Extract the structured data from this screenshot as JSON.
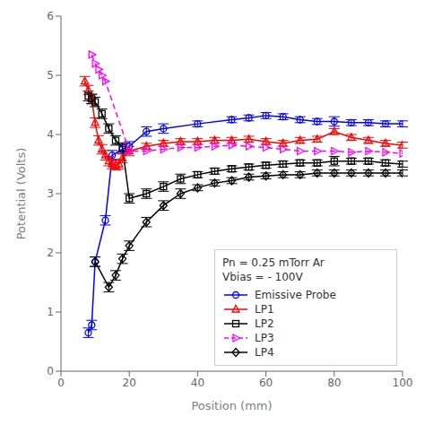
{
  "chart_data": {
    "type": "line",
    "xlabel": "Position (mm)",
    "ylabel": "Potential (Volts)",
    "xlim": [
      0,
      100
    ],
    "ylim": [
      0,
      6
    ],
    "xticks": [
      0,
      20,
      40,
      60,
      80,
      100
    ],
    "yticks": [
      0,
      1,
      2,
      3,
      4,
      5,
      6
    ],
    "grid": false,
    "legend": "lower right",
    "annotations": [
      "Pn = 0.25 mTorr Ar",
      "Vbias = - 100V"
    ],
    "series": [
      {
        "name": "Emissive Probe",
        "color": "#0000ff",
        "marker": "circle",
        "line_style": "solid",
        "x": [
          8,
          9,
          10,
          13,
          15,
          18,
          20,
          25,
          30,
          40,
          50,
          55,
          60,
          65,
          70,
          75,
          80,
          85,
          90,
          95,
          100
        ],
        "values": [
          0.65,
          0.78,
          1.85,
          2.55,
          3.65,
          3.75,
          3.8,
          4.05,
          4.1,
          4.18,
          4.25,
          4.28,
          4.32,
          4.3,
          4.25,
          4.22,
          4.22,
          4.2,
          4.2,
          4.18,
          4.18
        ],
        "errors": [
          0.08,
          0.08,
          0.08,
          0.08,
          0.08,
          0.08,
          0.08,
          0.08,
          0.08,
          0.05,
          0.05,
          0.05,
          0.05,
          0.05,
          0.05,
          0.05,
          0.08,
          0.05,
          0.05,
          0.05,
          0.05
        ]
      },
      {
        "name": "LP1",
        "color": "#ff0000",
        "marker": "triangle-up",
        "line_style": "solid",
        "x": [
          7,
          8,
          9,
          10,
          11,
          12,
          13,
          14,
          15,
          16,
          17,
          18,
          20,
          25,
          30,
          35,
          40,
          45,
          50,
          55,
          60,
          65,
          70,
          75,
          80,
          85,
          90,
          95,
          100
        ],
        "values": [
          4.9,
          4.75,
          4.6,
          4.2,
          3.9,
          3.75,
          3.65,
          3.55,
          3.5,
          3.48,
          3.5,
          3.6,
          3.72,
          3.8,
          3.85,
          3.88,
          3.88,
          3.9,
          3.9,
          3.92,
          3.88,
          3.85,
          3.9,
          3.92,
          4.05,
          3.95,
          3.9,
          3.85,
          3.82
        ],
        "errors": [
          0.08,
          0.08,
          0.08,
          0.08,
          0.08,
          0.08,
          0.08,
          0.08,
          0.08,
          0.08,
          0.08,
          0.08,
          0.08,
          0.05,
          0.05,
          0.05,
          0.05,
          0.05,
          0.05,
          0.05,
          0.05,
          0.05,
          0.05,
          0.05,
          0.05,
          0.05,
          0.05,
          0.05,
          0.05
        ]
      },
      {
        "name": "LP2",
        "color": "#000000",
        "marker": "square",
        "line_style": "solid",
        "x": [
          8,
          9,
          10,
          12,
          14,
          16,
          18,
          20,
          25,
          30,
          35,
          40,
          45,
          50,
          55,
          60,
          65,
          70,
          75,
          80,
          85,
          90,
          95,
          100
        ],
        "values": [
          4.65,
          4.6,
          4.55,
          4.35,
          4.1,
          3.9,
          3.78,
          2.92,
          3.0,
          3.12,
          3.25,
          3.32,
          3.38,
          3.42,
          3.45,
          3.48,
          3.5,
          3.52,
          3.52,
          3.55,
          3.55,
          3.55,
          3.52,
          3.5
        ],
        "errors": [
          0.08,
          0.08,
          0.08,
          0.08,
          0.08,
          0.08,
          0.08,
          0.08,
          0.08,
          0.08,
          0.08,
          0.05,
          0.05,
          0.05,
          0.05,
          0.05,
          0.05,
          0.05,
          0.05,
          0.08,
          0.05,
          0.05,
          0.05,
          0.05
        ]
      },
      {
        "name": "LP3",
        "color": "#ff00ff",
        "marker": "triangle-right",
        "line_style": "dashed",
        "x": [
          9,
          10,
          11,
          12,
          13,
          20,
          25,
          30,
          35,
          40,
          45,
          50,
          55,
          60,
          65,
          70,
          75,
          80,
          85,
          90,
          95,
          100
        ],
        "values": [
          5.35,
          5.2,
          5.1,
          5.0,
          4.9,
          3.72,
          3.72,
          3.75,
          3.78,
          3.78,
          3.8,
          3.82,
          3.8,
          3.78,
          3.75,
          3.72,
          3.72,
          3.72,
          3.7,
          3.72,
          3.7,
          3.68
        ]
      },
      {
        "name": "LP4",
        "color": "#000000",
        "marker": "diamond",
        "line_style": "solid",
        "x": [
          10,
          14,
          16,
          18,
          20,
          25,
          30,
          35,
          40,
          45,
          50,
          55,
          60,
          65,
          70,
          75,
          80,
          85,
          90,
          95,
          100
        ],
        "values": [
          1.85,
          1.42,
          1.62,
          1.9,
          2.12,
          2.52,
          2.8,
          3.0,
          3.1,
          3.18,
          3.22,
          3.28,
          3.3,
          3.32,
          3.32,
          3.35,
          3.35,
          3.35,
          3.35,
          3.35,
          3.35
        ],
        "errors": [
          0.08,
          0.08,
          0.08,
          0.08,
          0.08,
          0.08,
          0.08,
          0.08,
          0.05,
          0.05,
          0.05,
          0.05,
          0.05,
          0.05,
          0.05,
          0.05,
          0.05,
          0.05,
          0.05,
          0.05,
          0.05
        ]
      }
    ]
  }
}
